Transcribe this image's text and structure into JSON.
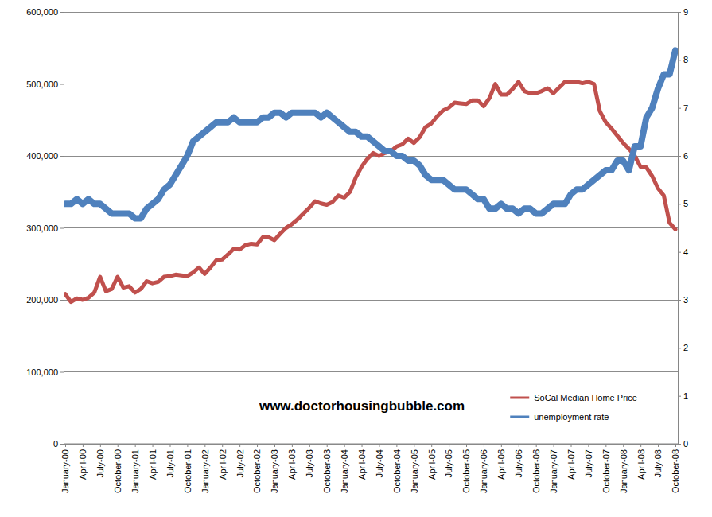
{
  "chart_data": {
    "type": "line",
    "categories": [
      "January-00",
      null,
      null,
      "April-00",
      null,
      null,
      "July-00",
      null,
      null,
      "October-00",
      null,
      null,
      "January-01",
      null,
      null,
      "April-01",
      null,
      null,
      "July-01",
      null,
      null,
      "October-01",
      null,
      null,
      "January-02",
      null,
      null,
      "April-02",
      null,
      null,
      "July-02",
      null,
      null,
      "October-02",
      null,
      null,
      "January-03",
      null,
      null,
      "April-03",
      null,
      null,
      "July-03",
      null,
      null,
      "October-03",
      null,
      null,
      "January-04",
      null,
      null,
      "April-04",
      null,
      null,
      "July-04",
      null,
      null,
      "October-04",
      null,
      null,
      "January-05",
      null,
      null,
      "April-05",
      null,
      null,
      "July-05",
      null,
      null,
      "October-05",
      null,
      null,
      "January-06",
      null,
      null,
      "April-06",
      null,
      null,
      "July-06",
      null,
      null,
      "October-06",
      null,
      null,
      "January-07",
      null,
      null,
      "April-07",
      null,
      null,
      "July-07",
      null,
      null,
      "October-07",
      null,
      null,
      "January-08",
      null,
      null,
      "April-08",
      null,
      null,
      "July-08",
      null,
      null,
      "October-08"
    ],
    "series": [
      {
        "name": "SoCal Median Home Price",
        "color": "#C0504D",
        "values": [
          208000,
          197000,
          202000,
          200000,
          203000,
          210000,
          232000,
          212000,
          215000,
          232000,
          217000,
          219000,
          210000,
          215000,
          226000,
          223000,
          225000,
          232000,
          233000,
          235000,
          234000,
          233000,
          238000,
          245000,
          236000,
          245000,
          255000,
          256000,
          263000,
          271000,
          270000,
          276000,
          278000,
          277000,
          287000,
          287000,
          283000,
          292000,
          300000,
          305000,
          312000,
          320000,
          328000,
          337000,
          334000,
          332000,
          336000,
          345000,
          342000,
          350000,
          370000,
          385000,
          396000,
          404000,
          400000,
          404000,
          406000,
          413000,
          416000,
          424000,
          418000,
          426000,
          440000,
          445000,
          455000,
          463000,
          467000,
          474000,
          473000,
          472000,
          477000,
          477000,
          469000,
          480000,
          500000,
          485000,
          485000,
          493000,
          503000,
          490000,
          487000,
          487000,
          490000,
          494000,
          487000,
          495000,
          503000,
          503000,
          503000,
          501000,
          503000,
          500000,
          462000,
          447000,
          438000,
          428000,
          418000,
          410000,
          400000,
          385000,
          384000,
          372000,
          355000,
          345000,
          307000,
          298000
        ]
      },
      {
        "name": "unemployment rate",
        "color": "#4F81BD",
        "axis": "y2",
        "values": [
          5.0,
          5.0,
          5.1,
          5.0,
          5.1,
          5.0,
          5.0,
          4.9,
          4.8,
          4.8,
          4.8,
          4.8,
          4.7,
          4.7,
          4.9,
          5.0,
          5.1,
          5.3,
          5.4,
          5.6,
          5.8,
          6.0,
          6.3,
          6.4,
          6.5,
          6.6,
          6.7,
          6.7,
          6.7,
          6.8,
          6.7,
          6.7,
          6.7,
          6.7,
          6.8,
          6.8,
          6.9,
          6.9,
          6.8,
          6.9,
          6.9,
          6.9,
          6.9,
          6.9,
          6.8,
          6.9,
          6.8,
          6.7,
          6.6,
          6.5,
          6.5,
          6.4,
          6.4,
          6.3,
          6.2,
          6.1,
          6.1,
          6.0,
          6.0,
          5.9,
          5.9,
          5.8,
          5.6,
          5.5,
          5.5,
          5.5,
          5.4,
          5.3,
          5.3,
          5.3,
          5.2,
          5.1,
          5.1,
          4.9,
          4.9,
          5.0,
          4.9,
          4.9,
          4.8,
          4.9,
          4.9,
          4.8,
          4.8,
          4.9,
          5.0,
          5.0,
          5.0,
          5.2,
          5.3,
          5.3,
          5.4,
          5.5,
          5.6,
          5.7,
          5.7,
          5.9,
          5.9,
          5.7,
          6.2,
          6.2,
          6.8,
          7.0,
          7.4,
          7.7,
          7.7,
          8.2
        ]
      }
    ],
    "ylim": [
      0,
      600000
    ],
    "yticks": [
      0,
      {
        "value": 100000,
        "label": "100,000"
      },
      {
        "value": 200000,
        "label": "200,000"
      },
      {
        "value": 300000,
        "label": "300,000"
      },
      {
        "value": 400000,
        "label": "400,000"
      },
      {
        "value": 500000,
        "label": "500,000"
      },
      {
        "value": 600000,
        "label": "600,000"
      }
    ],
    "y2lim": [
      0,
      9
    ],
    "y2ticks": [
      0,
      1,
      2,
      3,
      4,
      5,
      6,
      7,
      8,
      9
    ],
    "grid": true,
    "legend": "lower right",
    "annotations": [
      "www.doctorhousingbubble.com"
    ]
  }
}
